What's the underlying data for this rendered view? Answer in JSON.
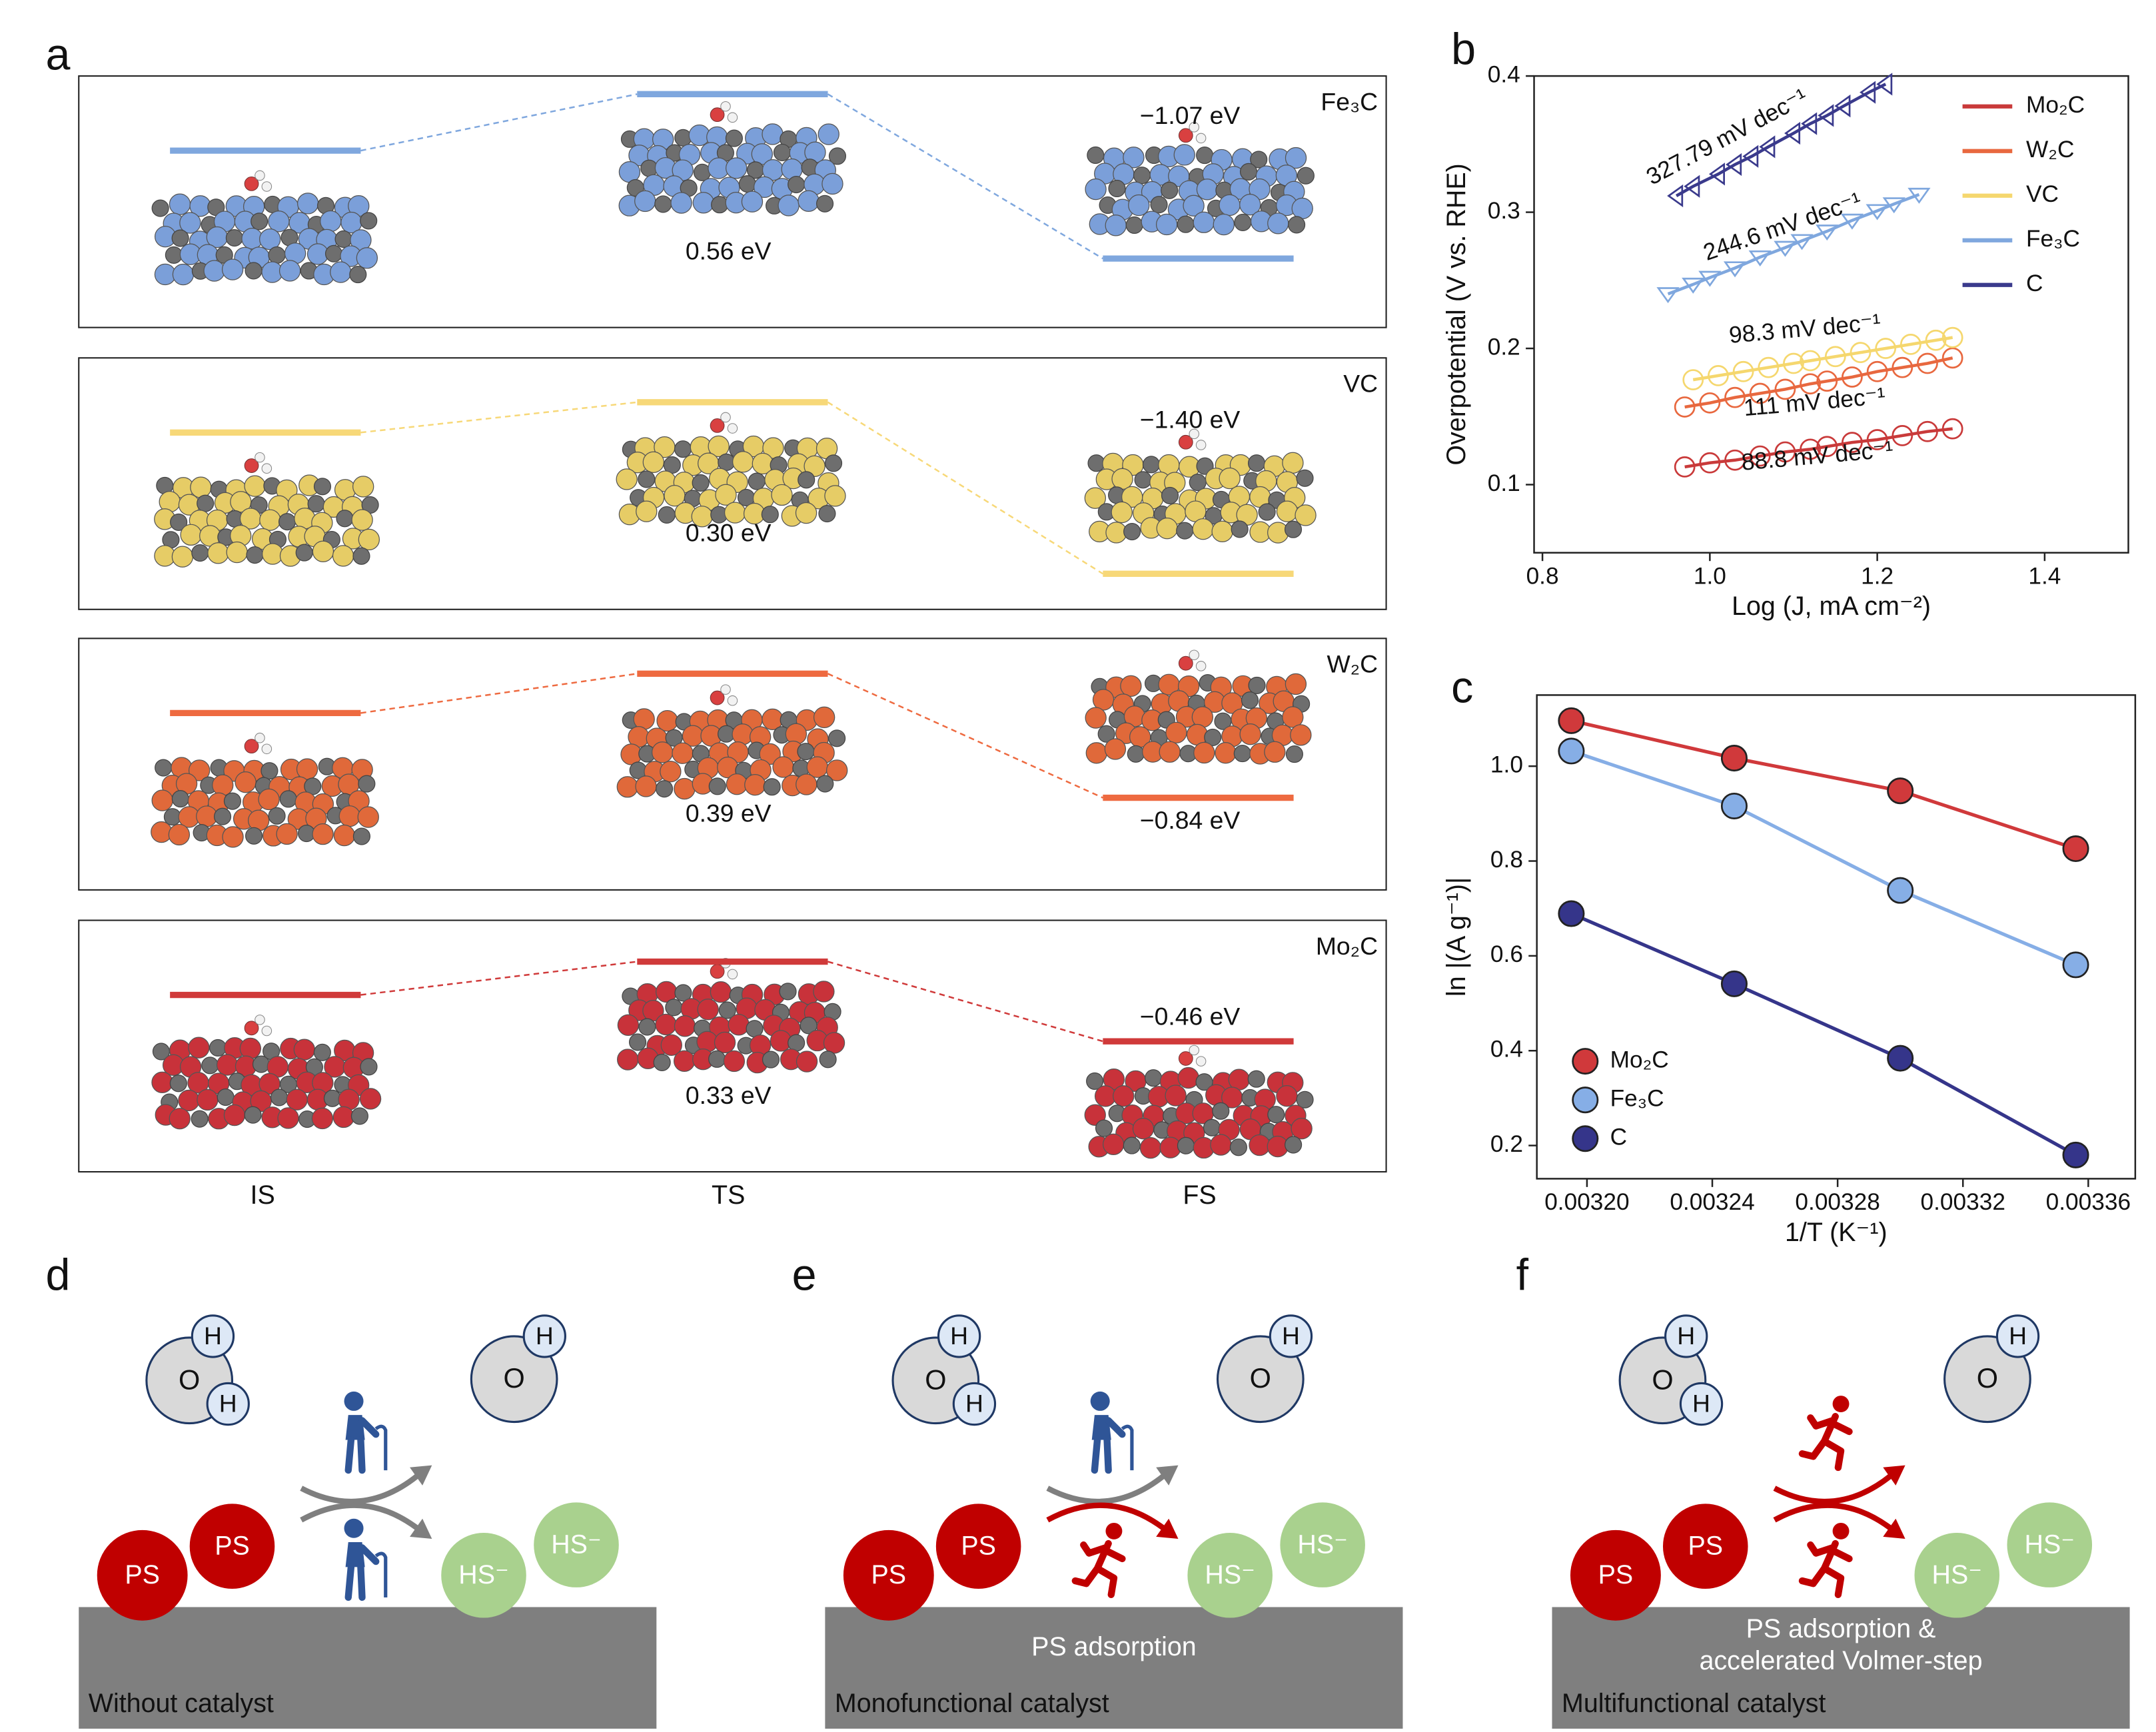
{
  "panel_labels": [
    "a",
    "b",
    "c",
    "d",
    "e",
    "f"
  ],
  "chart_data": [
    {
      "type": "energy_profile",
      "categories": [
        "IS",
        "TS",
        "FS"
      ],
      "series": [
        {
          "name": "Fe₃C",
          "color": "#7fa7de",
          "atom_color": "#7b9fd9",
          "values": [
            0,
            0.56,
            -1.07
          ],
          "value_labels": [
            null,
            "0.56 eV",
            "−1.07 eV"
          ]
        },
        {
          "name": "VC",
          "color": "#f7d878",
          "atom_color": "#e6cc66",
          "values": [
            0,
            0.3,
            -1.4
          ],
          "value_labels": [
            null,
            "0.30 eV",
            "−1.40 eV"
          ]
        },
        {
          "name": "W₂C",
          "color": "#ee6a40",
          "atom_color": "#e0693a",
          "values": [
            0,
            0.39,
            -0.84
          ],
          "value_labels": [
            null,
            "0.39 eV",
            "−0.84 eV"
          ]
        },
        {
          "name": "Mo₂C",
          "color": "#d03a3a",
          "atom_color": "#c8323a",
          "values": [
            0,
            0.33,
            -0.46
          ],
          "value_labels": [
            null,
            "0.33 eV",
            "−0.46 eV"
          ]
        }
      ]
    },
    {
      "type": "line",
      "xlabel": "Log (J, mA cm⁻²)",
      "ylabel": "Overpotential (V vs. RHE)",
      "xlim": [
        0.79,
        1.5
      ],
      "ylim": [
        0.05,
        0.4
      ],
      "xticks": [
        0.8,
        {
          "value": 1,
          "label": "1.0"
        },
        1.2,
        1.4
      ],
      "yticks": [
        0.1,
        0.2,
        0.3,
        0.4
      ],
      "legend": "upper right",
      "series": [
        {
          "name": "Mo₂C",
          "color": "#c93a3a",
          "marker": "circle",
          "annotation": "88.8 mV dec⁻¹",
          "x": [
            0.97,
            1.0,
            1.03,
            1.06,
            1.09,
            1.12,
            1.14,
            1.17,
            1.2,
            1.23,
            1.26,
            1.29
          ],
          "values": [
            0.113,
            0.116,
            0.118,
            0.121,
            0.124,
            0.126,
            0.128,
            0.131,
            0.133,
            0.136,
            0.139,
            0.141
          ]
        },
        {
          "name": "W₂C",
          "color": "#e8683f",
          "marker": "circle",
          "annotation": "111 mV dec⁻¹",
          "x": [
            0.97,
            1.0,
            1.03,
            1.06,
            1.09,
            1.12,
            1.14,
            1.17,
            1.2,
            1.23,
            1.26,
            1.29
          ],
          "values": [
            0.157,
            0.16,
            0.164,
            0.167,
            0.17,
            0.174,
            0.176,
            0.179,
            0.183,
            0.186,
            0.189,
            0.193
          ]
        },
        {
          "name": "VC",
          "color": "#f5d76e",
          "marker": "circle",
          "annotation": "98.3 mV dec⁻¹",
          "x": [
            0.98,
            1.01,
            1.04,
            1.07,
            1.1,
            1.12,
            1.15,
            1.18,
            1.21,
            1.24,
            1.27,
            1.29
          ],
          "values": [
            0.177,
            0.18,
            0.183,
            0.186,
            0.189,
            0.191,
            0.194,
            0.197,
            0.2,
            0.203,
            0.206,
            0.208
          ]
        },
        {
          "name": "Fe₃C",
          "color": "#7fa7de",
          "marker": "triangle-down",
          "annotation": "244.6 mV dec⁻¹",
          "x": [
            0.95,
            0.98,
            1.0,
            1.03,
            1.06,
            1.09,
            1.11,
            1.14,
            1.17,
            1.2,
            1.22,
            1.25
          ],
          "values": [
            0.24,
            0.247,
            0.252,
            0.259,
            0.267,
            0.274,
            0.279,
            0.286,
            0.294,
            0.301,
            0.306,
            0.313
          ]
        },
        {
          "name": "C",
          "color": "#3a3a8c",
          "marker": "triangle-left",
          "annotation": "327.79 mV dec⁻¹",
          "x": [
            0.96,
            0.98,
            1.01,
            1.03,
            1.05,
            1.07,
            1.1,
            1.12,
            1.14,
            1.16,
            1.19,
            1.21
          ],
          "values": [
            0.312,
            0.319,
            0.328,
            0.335,
            0.341,
            0.348,
            0.358,
            0.365,
            0.371,
            0.378,
            0.388,
            0.394
          ]
        }
      ]
    },
    {
      "type": "scatter",
      "xlabel": "1/T (K⁻¹)",
      "ylabel": "ln |(A g⁻¹)|",
      "xlim": [
        0.003184,
        0.003375
      ],
      "ylim": [
        0.13,
        1.15
      ],
      "xticks": [
        {
          "value": 0.0032,
          "label": "0.00320"
        },
        {
          "value": 0.00324,
          "label": "0.00324"
        },
        {
          "value": 0.00328,
          "label": "0.00328"
        },
        {
          "value": 0.00332,
          "label": "0.00332"
        },
        {
          "value": 0.00336,
          "label": "0.00336"
        }
      ],
      "yticks": [
        0.2,
        0.4,
        0.6,
        0.8,
        {
          "value": 1,
          "label": "1.0"
        }
      ],
      "legend": "lower left",
      "series": [
        {
          "name": "Mo₂C",
          "color": "#d0393b",
          "x": [
            0.003195,
            0.003247,
            0.0033,
            0.003356
          ],
          "values": [
            1.096,
            1.017,
            0.948,
            0.826
          ]
        },
        {
          "name": "Fe₃C",
          "color": "#86aee6",
          "x": [
            0.003195,
            0.003247,
            0.0033,
            0.003356
          ],
          "values": [
            1.032,
            0.916,
            0.738,
            0.581
          ]
        },
        {
          "name": "C",
          "color": "#35358a",
          "x": [
            0.003195,
            0.003247,
            0.0033,
            0.003356
          ],
          "values": [
            0.689,
            0.541,
            0.384,
            0.18
          ]
        }
      ]
    }
  ],
  "diagram_labels": {
    "oxygen": "O",
    "hydrogen": "H",
    "ps": "PS",
    "hs": "HS⁻"
  },
  "diagrams": [
    {
      "caption": "Without catalyst",
      "walkers": [
        "elderly",
        "elderly"
      ]
    },
    {
      "caption": "Monofunctional catalyst",
      "surface_text": [
        "PS adsorption"
      ],
      "walkers": [
        "elderly",
        "runner"
      ]
    },
    {
      "caption": "Multifunctional catalyst",
      "surface_text": [
        "PS adsorption &",
        "accelerated Volmer-step"
      ],
      "walkers": [
        "runner",
        "runner"
      ]
    }
  ]
}
